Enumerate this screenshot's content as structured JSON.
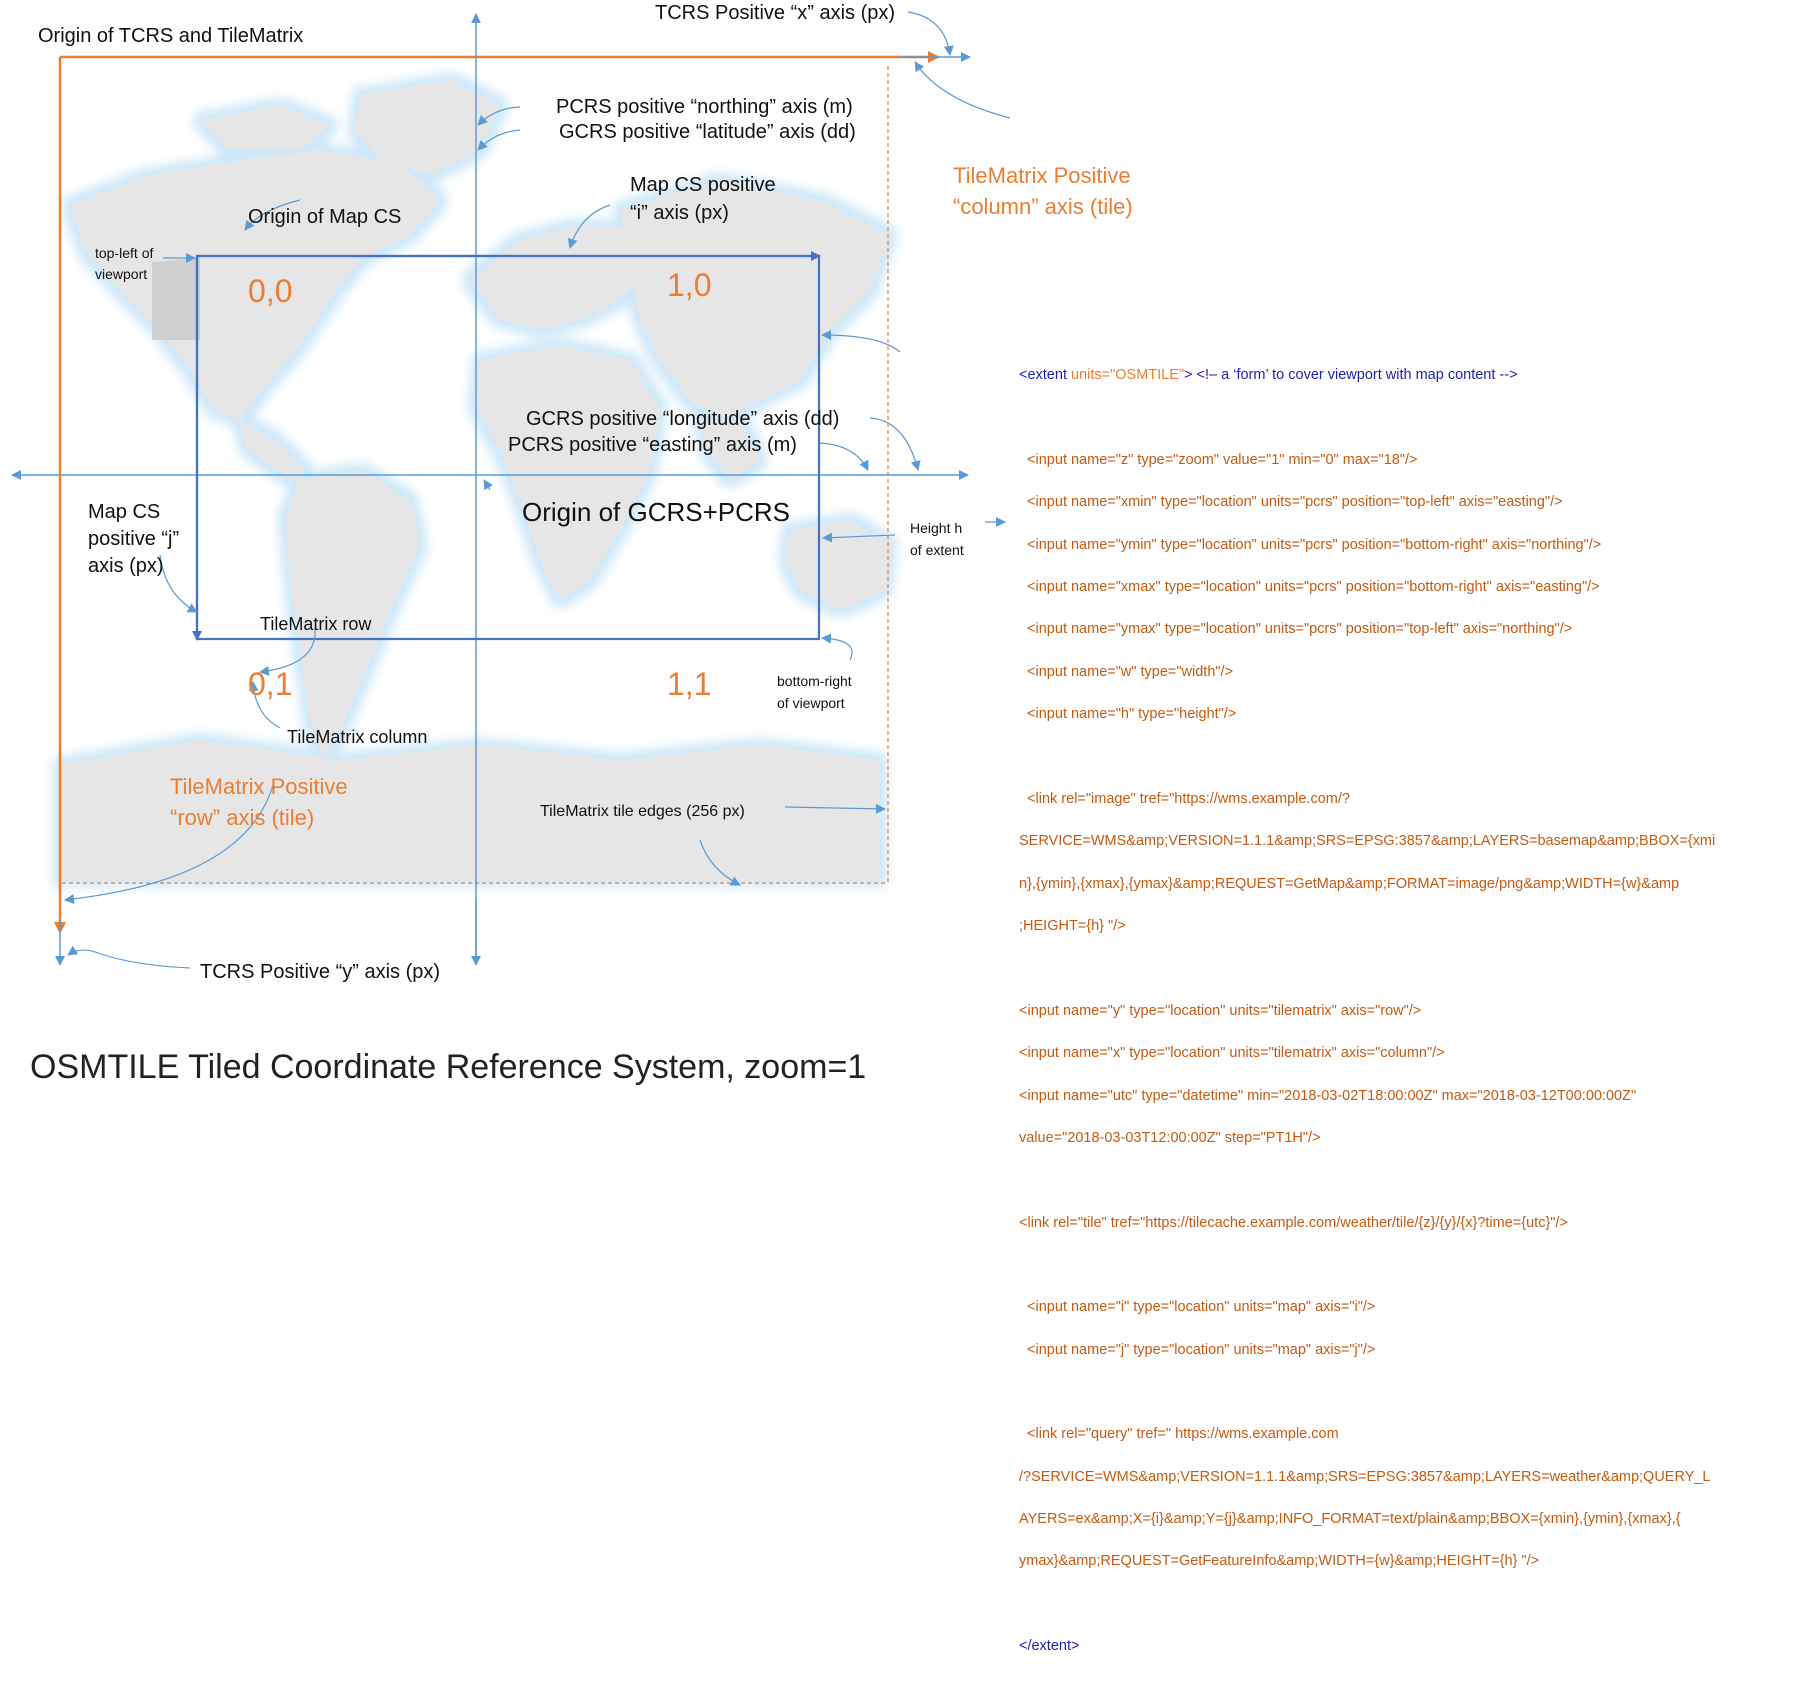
{
  "diagram": {
    "title": "OSMTILE Tiled Coordinate Reference System, zoom=1",
    "labels": {
      "origin_tcrs": "Origin of TCRS and TileMatrix",
      "tcrs_x_axis": "TCRS  Positive “x” axis (px)",
      "tcrs_y_axis": "TCRS Positive “y” axis (px)",
      "pcrs_northing": "PCRS positive “northing” axis (m)",
      "gcrs_latitude": "GCRS positive “latitude” axis (dd)",
      "tilematrix_col_axis_1": "TileMatrix  Positive",
      "tilematrix_col_axis_2": "“column” axis (tile)",
      "mapcs_i_1": "Map CS positive",
      "mapcs_i_2": "“i” axis (px)",
      "origin_mapcs": "Origin of Map CS",
      "top_left_1": "top-left of",
      "top_left_2": "viewport",
      "gcrs_longitude": "GCRS positive “longitude” axis   (dd)",
      "pcrs_easting": "PCRS positive “easting” axis (m)",
      "origin_gcrs": "Origin of GCRS+PCRS",
      "mapcs_j_1": "Map CS",
      "mapcs_j_2": "positive “j”",
      "mapcs_j_3": "axis (px)",
      "height_1": "Height h",
      "height_2": "of extent",
      "tm_row": "TileMatrix row",
      "tm_column": "TileMatrix column",
      "bottom_right_1": "bottom-right",
      "bottom_right_2": "of viewport",
      "tm_row_axis_1": "TileMatrix Positive",
      "tm_row_axis_2": "“row” axis (tile)",
      "tile_edges": "TileMatrix tile edges (256 px)"
    },
    "tiles": {
      "t00": "0,0",
      "t10": "1,0",
      "t01": "0,1",
      "t11": "1,1"
    },
    "colors": {
      "accent_orange": "#ed7d31",
      "viewport_blue": "#4472c4",
      "arrow_blue": "#5b9bd5",
      "land_grey": "#e6e6e6",
      "land_halo": "#d6ecfa"
    }
  },
  "code": {
    "extent_open_tag": "<extent ",
    "extent_open_attr": "units=\"OSMTILE\"",
    "extent_open_rest": "> <!– a ‘form’ to cover viewport with map content -->",
    "input_zoom": "  <input name=\"z\" type=\"zoom\" value=\"1\" min=\"0\" max=\"18\"/>",
    "input_xmin": "  <input name=\"xmin\" type=\"location\" units=\"pcrs\" position=\"top-left\" axis=\"easting\"/>",
    "input_ymin": "  <input name=\"ymin\" type=\"location\" units=\"pcrs\" position=\"bottom-right\" axis=\"northing\"/>",
    "input_xmax": "  <input name=\"xmax\" type=\"location\" units=\"pcrs\" position=\"bottom-right\" axis=\"easting\"/>",
    "input_ymax": "  <input name=\"ymax\" type=\"location\" units=\"pcrs\" position=\"top-left\" axis=\"northing\"/>",
    "input_w": "  <input name=\"w\" type=\"width\"/>",
    "input_h": "  <input name=\"h\" type=\"height\"/>",
    "link_image_1": "  <link rel=\"image\" tref=\"https://wms.example.com/?",
    "link_image_2": "SERVICE=WMS&amp;VERSION=1.1.1&amp;SRS=EPSG:3857&amp;LAYERS=basemap&amp;BBOX={xmi",
    "link_image_3": "n},{ymin},{xmax},{ymax}&amp;REQUEST=GetMap&amp;FORMAT=image/png&amp;WIDTH={w}&amp",
    "link_image_4": ";HEIGHT={h} \"/>",
    "input_y": "<input name=\"y\" type=\"location\" units=\"tilematrix\" axis=\"row\"/>",
    "input_x": "<input name=\"x\" type=\"location\" units=\"tilematrix\" axis=\"column\"/>",
    "input_utc_1": "<input name=\"utc\" type=\"datetime\" min=\"2018-03-02T18:00:00Z\" max=\"2018-03-12T00:00:00Z\"",
    "input_utc_2": "value=\"2018-03-03T12:00:00Z\" step=\"PT1H\"/>",
    "link_tile": "<link rel=\"tile\" tref=\"https://tilecache.example.com/weather/tile/{z}/{y}/{x}?time={utc}\"/>",
    "input_i": "  <input name=\"i\" type=\"location\" units=\"map\" axis=\"i\"/>",
    "input_j": "  <input name=\"j\" type=\"location\" units=\"map\" axis=\"j\"/>",
    "link_query_1": "  <link rel=\"query\" tref=\" https://wms.example.com",
    "link_query_2": "/?SERVICE=WMS&amp;VERSION=1.1.1&amp;SRS=EPSG:3857&amp;LAYERS=weather&amp;QUERY_L",
    "link_query_3": "AYERS=ex&amp;X={i}&amp;Y={j}&amp;INFO_FORMAT=text/plain&amp;BBOX={xmin},{ymin},{xmax},{",
    "link_query_4": "ymax}&amp;REQUEST=GetFeatureInfo&amp;WIDTH={w}&amp;HEIGHT={h} \"/>",
    "extent_close": "</extent>"
  }
}
